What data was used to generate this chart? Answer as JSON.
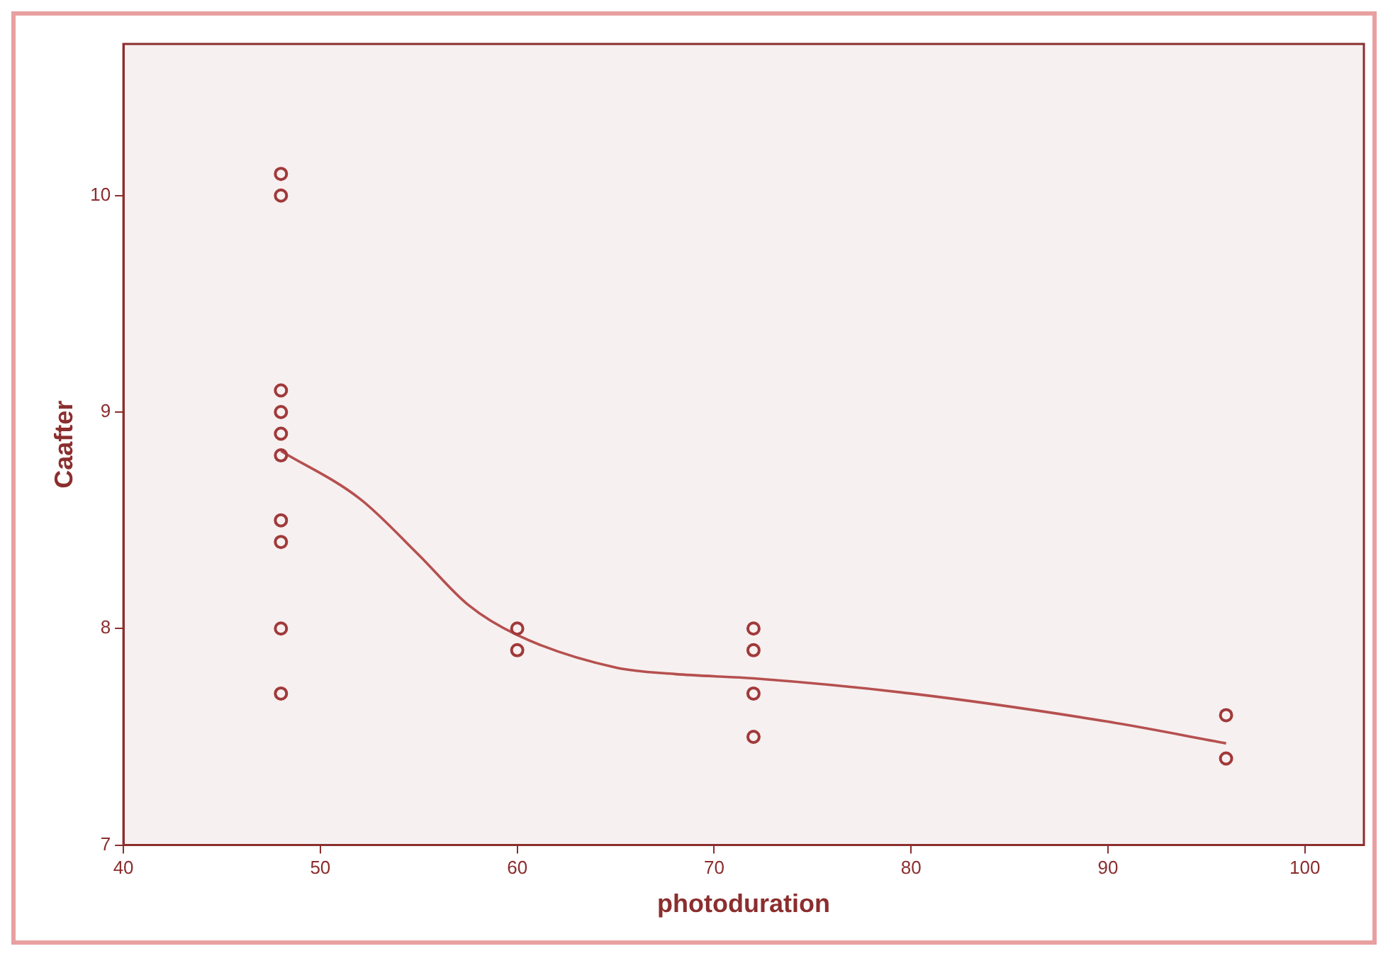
{
  "chart_data": {
    "type": "scatter",
    "xlabel": "photoduration",
    "ylabel": "Caafter",
    "xlim": [
      40,
      103
    ],
    "ylim": [
      7,
      10.7
    ],
    "xticks": [
      40,
      50,
      60,
      70,
      80,
      90,
      100
    ],
    "yticks": [
      7,
      8,
      9,
      10
    ],
    "grid": false,
    "legend": false,
    "marker": "circle",
    "series": [
      {
        "type": "scatter",
        "color": "#a0393a",
        "x": [
          48,
          48,
          48,
          48,
          48,
          48,
          48,
          48,
          48,
          48,
          60,
          60,
          72,
          72,
          72,
          72,
          96,
          96
        ],
        "values": [
          10.1,
          10.0,
          9.1,
          9.0,
          8.9,
          8.8,
          8.5,
          8.4,
          8.0,
          7.7,
          8.0,
          7.9,
          8.0,
          7.9,
          7.7,
          7.5,
          7.6,
          7.4
        ]
      },
      {
        "type": "line",
        "color": "#b5504f",
        "marker": "none",
        "x": [
          48,
          52,
          55,
          57.5,
          60,
          65,
          68,
          72,
          80,
          90,
          96
        ],
        "values": [
          8.82,
          8.6,
          8.34,
          8.11,
          7.97,
          7.82,
          7.79,
          7.77,
          7.7,
          7.57,
          7.47
        ]
      }
    ]
  }
}
